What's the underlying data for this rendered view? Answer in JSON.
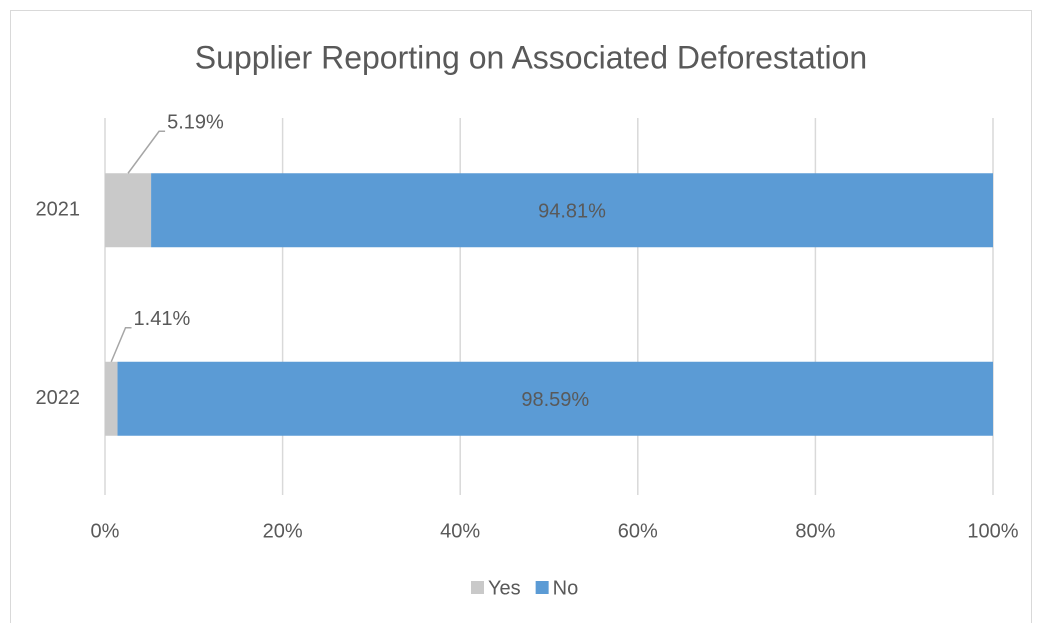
{
  "chart_data": {
    "type": "stacked-bar-horizontal",
    "title": "Supplier Reporting on Associated Deforestation",
    "categories": [
      "2021",
      "2022"
    ],
    "series": [
      {
        "name": "Yes",
        "color": "#c9c9c9",
        "values": [
          5.19,
          1.41
        ],
        "value_labels": [
          "5.19%",
          "1.41%"
        ]
      },
      {
        "name": "No",
        "color": "#5b9bd5",
        "values": [
          94.81,
          98.59
        ],
        "value_labels": [
          "94.81%",
          "98.59%"
        ]
      }
    ],
    "xlim": [
      0,
      100
    ],
    "xticks": [
      {
        "value": 0,
        "label": "0%"
      },
      {
        "value": 20,
        "label": "20%"
      },
      {
        "value": 40,
        "label": "40%"
      },
      {
        "value": 60,
        "label": "60%"
      },
      {
        "value": 80,
        "label": "80%"
      },
      {
        "value": 100,
        "label": "100%"
      }
    ],
    "grid": true,
    "legend": "bottom"
  }
}
